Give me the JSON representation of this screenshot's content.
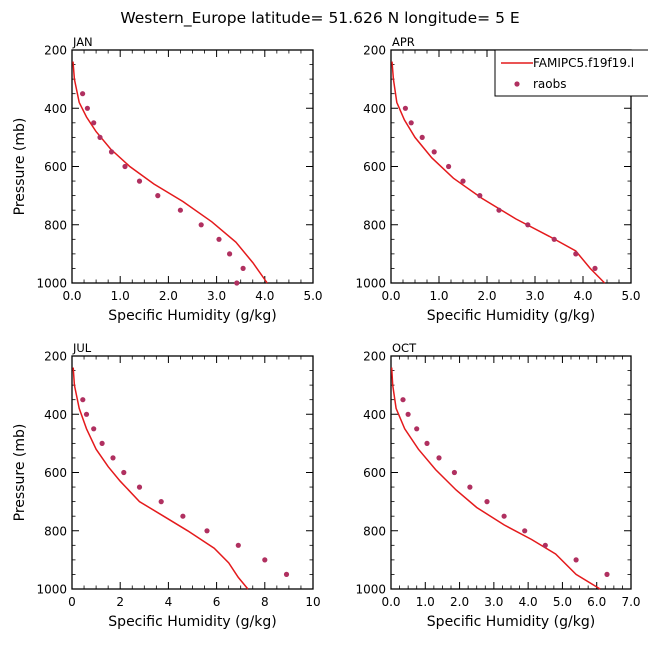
{
  "title": "Western_Europe  latitude= 51.626 N longitude= 5 E",
  "legend": {
    "model_label": "FAMIPC5.f19f19.l",
    "obs_label": "raobs",
    "placement": "top-right",
    "model_color": "#e41a1c",
    "obs_color": "#b03060"
  },
  "chart_data": [
    {
      "type": "line",
      "panel_label": "JAN",
      "xlabel": "Specific Humidity (g/kg)",
      "ylabel": "Pressure (mb)",
      "xlim": [
        0,
        5
      ],
      "ylim": [
        1000,
        200
      ],
      "x_ticks": [
        "0.0",
        "1.0",
        "2.0",
        "3.0",
        "4.0",
        "5.0"
      ],
      "y_ticks": [
        "200",
        "400",
        "600",
        "800",
        "1000"
      ],
      "series": [
        {
          "name": "FAMIPC5.f19f19.l",
          "kind": "line",
          "points": [
            [
              0.02,
              240
            ],
            [
              0.05,
              300
            ],
            [
              0.15,
              380
            ],
            [
              0.3,
              430
            ],
            [
              0.5,
              480
            ],
            [
              0.8,
              540
            ],
            [
              1.2,
              600
            ],
            [
              1.7,
              660
            ],
            [
              2.3,
              720
            ],
            [
              2.9,
              790
            ],
            [
              3.4,
              860
            ],
            [
              3.75,
              930
            ],
            [
              4.05,
              1000
            ]
          ]
        },
        {
          "name": "raobs",
          "kind": "scatter",
          "points": [
            [
              0.22,
              350
            ],
            [
              0.32,
              400
            ],
            [
              0.45,
              450
            ],
            [
              0.58,
              500
            ],
            [
              0.82,
              550
            ],
            [
              1.1,
              600
            ],
            [
              1.4,
              650
            ],
            [
              1.78,
              700
            ],
            [
              2.25,
              750
            ],
            [
              2.68,
              800
            ],
            [
              3.05,
              850
            ],
            [
              3.27,
              900
            ],
            [
              3.55,
              950
            ],
            [
              3.42,
              1000
            ]
          ]
        }
      ]
    },
    {
      "type": "line",
      "panel_label": "APR",
      "xlabel": "Specific Humidity (g/kg)",
      "ylabel": "",
      "xlim": [
        0,
        5
      ],
      "ylim": [
        1000,
        200
      ],
      "x_ticks": [
        "0.0",
        "1.0",
        "2.0",
        "3.0",
        "4.0",
        "5.0"
      ],
      "y_ticks": [
        "200",
        "400",
        "600",
        "800",
        "1000"
      ],
      "series": [
        {
          "name": "FAMIPC5.f19f19.l",
          "kind": "line",
          "points": [
            [
              0.02,
              240
            ],
            [
              0.05,
              300
            ],
            [
              0.12,
              380
            ],
            [
              0.28,
              440
            ],
            [
              0.5,
              500
            ],
            [
              0.85,
              570
            ],
            [
              1.3,
              640
            ],
            [
              1.9,
              710
            ],
            [
              2.6,
              780
            ],
            [
              3.3,
              840
            ],
            [
              3.85,
              890
            ],
            [
              4.15,
              950
            ],
            [
              4.45,
              1000
            ]
          ]
        },
        {
          "name": "raobs",
          "kind": "scatter",
          "points": [
            [
              0.3,
              400
            ],
            [
              0.42,
              450
            ],
            [
              0.65,
              500
            ],
            [
              0.9,
              550
            ],
            [
              1.2,
              600
            ],
            [
              1.5,
              650
            ],
            [
              1.85,
              700
            ],
            [
              2.25,
              750
            ],
            [
              2.85,
              800
            ],
            [
              3.4,
              850
            ],
            [
              3.85,
              900
            ],
            [
              4.25,
              950
            ]
          ]
        }
      ]
    },
    {
      "type": "line",
      "panel_label": "JUL",
      "xlabel": "Specific Humidity (g/kg)",
      "ylabel": "Pressure (mb)",
      "xlim": [
        0,
        10
      ],
      "ylim": [
        1000,
        200
      ],
      "x_ticks": [
        "0",
        "2",
        "4",
        "6",
        "8",
        "10"
      ],
      "y_ticks": [
        "200",
        "400",
        "600",
        "800",
        "1000"
      ],
      "series": [
        {
          "name": "FAMIPC5.f19f19.l",
          "kind": "line",
          "points": [
            [
              0.05,
              240
            ],
            [
              0.1,
              300
            ],
            [
              0.3,
              380
            ],
            [
              0.6,
              450
            ],
            [
              1.0,
              520
            ],
            [
              1.5,
              580
            ],
            [
              2.0,
              630
            ],
            [
              2.8,
              700
            ],
            [
              3.8,
              750
            ],
            [
              4.8,
              800
            ],
            [
              5.9,
              860
            ],
            [
              6.5,
              910
            ],
            [
              6.9,
              960
            ],
            [
              7.3,
              1000
            ]
          ]
        },
        {
          "name": "raobs",
          "kind": "scatter",
          "points": [
            [
              0.45,
              350
            ],
            [
              0.6,
              400
            ],
            [
              0.9,
              450
            ],
            [
              1.25,
              500
            ],
            [
              1.7,
              550
            ],
            [
              2.15,
              600
            ],
            [
              2.8,
              650
            ],
            [
              3.7,
              700
            ],
            [
              4.6,
              750
            ],
            [
              5.6,
              800
            ],
            [
              6.9,
              850
            ],
            [
              8.0,
              900
            ],
            [
              8.9,
              950
            ]
          ]
        }
      ]
    },
    {
      "type": "line",
      "panel_label": "OCT",
      "xlabel": "Specific Humidity (g/kg)",
      "ylabel": "",
      "xlim": [
        0,
        7
      ],
      "ylim": [
        1000,
        200
      ],
      "x_ticks": [
        "0.0",
        "1.0",
        "2.0",
        "3.0",
        "4.0",
        "5.0",
        "6.0",
        "7.0"
      ],
      "y_ticks": [
        "200",
        "400",
        "600",
        "800",
        "1000"
      ],
      "series": [
        {
          "name": "FAMIPC5.f19f19.l",
          "kind": "line",
          "points": [
            [
              0.02,
              240
            ],
            [
              0.05,
              300
            ],
            [
              0.15,
              380
            ],
            [
              0.4,
              450
            ],
            [
              0.8,
              520
            ],
            [
              1.3,
              590
            ],
            [
              1.9,
              660
            ],
            [
              2.5,
              720
            ],
            [
              3.3,
              780
            ],
            [
              4.1,
              830
            ],
            [
              4.8,
              880
            ],
            [
              5.4,
              950
            ],
            [
              6.1,
              1000
            ]
          ]
        },
        {
          "name": "raobs",
          "kind": "scatter",
          "points": [
            [
              0.35,
              350
            ],
            [
              0.5,
              400
            ],
            [
              0.75,
              450
            ],
            [
              1.05,
              500
            ],
            [
              1.4,
              550
            ],
            [
              1.85,
              600
            ],
            [
              2.3,
              650
            ],
            [
              2.8,
              700
            ],
            [
              3.3,
              750
            ],
            [
              3.9,
              800
            ],
            [
              4.5,
              850
            ],
            [
              5.4,
              900
            ],
            [
              6.3,
              950
            ]
          ]
        }
      ]
    }
  ]
}
